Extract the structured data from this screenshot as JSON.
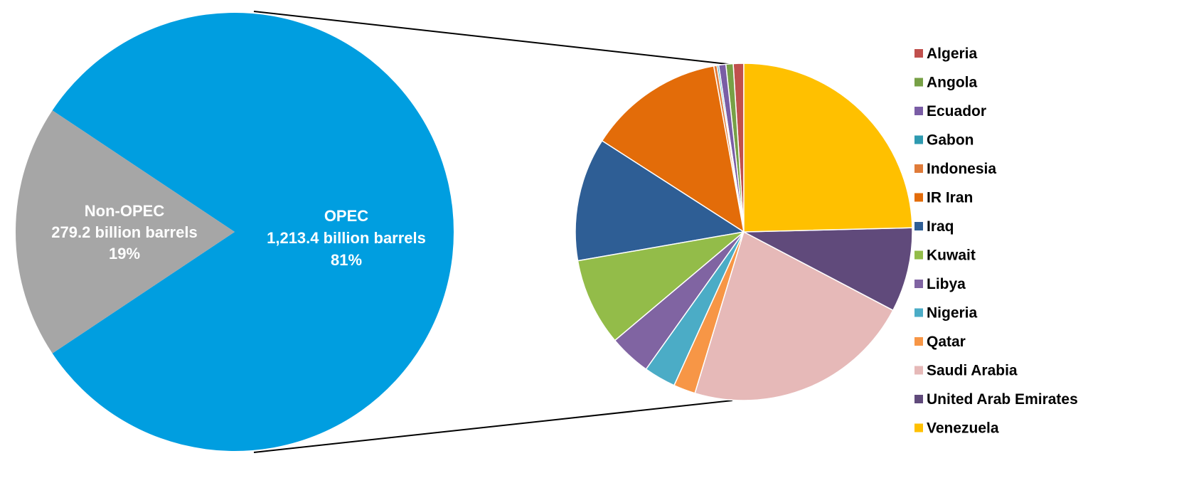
{
  "chart_data": [
    {
      "type": "pie",
      "title": "",
      "slices": [
        {
          "name": "OPEC",
          "value": 1213.4,
          "percent": "81%",
          "value_label": "1,213.4 billion barrels",
          "color": "#009EE0"
        },
        {
          "name": "Non-OPEC",
          "value": 279.2,
          "percent": "19%",
          "value_label": "279.2 billion barrels",
          "color": "#A6A6A6"
        }
      ]
    },
    {
      "type": "pie",
      "title": "",
      "unit": "billion barrels",
      "legend_position": "right",
      "slices": [
        {
          "name": "Algeria",
          "value": 12.2,
          "color": "#C0504D"
        },
        {
          "name": "Angola",
          "value": 8.4,
          "color": "#77A046"
        },
        {
          "name": "Ecuador",
          "value": 8.3,
          "color": "#7A5DA5"
        },
        {
          "name": "Gabon",
          "value": 2.0,
          "color": "#2E9AB0"
        },
        {
          "name": "Indonesia",
          "value": 3.7,
          "color": "#E07B39"
        },
        {
          "name": "IR Iran",
          "value": 157.8,
          "color": "#E36C09"
        },
        {
          "name": "Iraq",
          "value": 143.1,
          "color": "#2E5E95"
        },
        {
          "name": "Kuwait",
          "value": 101.5,
          "color": "#93BC49"
        },
        {
          "name": "Libya",
          "value": 48.5,
          "color": "#8064A2"
        },
        {
          "name": "Nigeria",
          "value": 37.1,
          "color": "#4BACC6"
        },
        {
          "name": "Qatar",
          "value": 25.4,
          "color": "#F79646"
        },
        {
          "name": "Saudi Arabia",
          "value": 265.9,
          "color": "#E6B9B8"
        },
        {
          "name": "United Arab Emirates",
          "value": 97.8,
          "color": "#604A7B"
        },
        {
          "name": "Venezuela",
          "value": 297.6,
          "color": "#FFC000"
        }
      ]
    }
  ]
}
